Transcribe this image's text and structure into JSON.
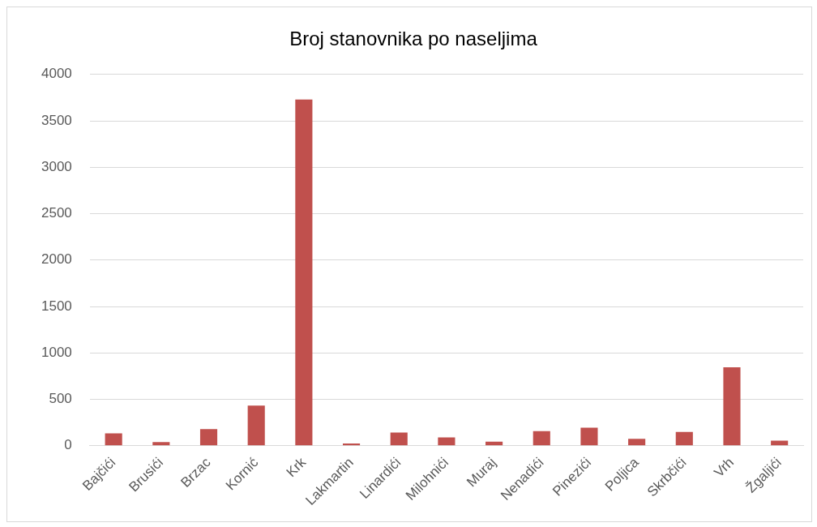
{
  "chart_data": {
    "type": "bar",
    "title": "Broj stanovnika po naseljima",
    "categories": [
      "Bajčići",
      "Brusići",
      "Brzac",
      "Kornić",
      "Krk",
      "Lakmartin",
      "Linardići",
      "Milohnići",
      "Muraj",
      "Nenadići",
      "Pinezići",
      "Poljica",
      "Skrbčići",
      "Vrh",
      "Žgaljići"
    ],
    "values": [
      133,
      40,
      179,
      432,
      3730,
      25,
      142,
      90,
      43,
      157,
      194,
      74,
      148,
      846,
      56
    ],
    "color": "#c0504d",
    "ylim": [
      0,
      4000
    ],
    "yticks": [
      0,
      500,
      1000,
      1500,
      2000,
      2500,
      3000,
      3500,
      4000
    ],
    "grid": "y",
    "legend": false
  }
}
